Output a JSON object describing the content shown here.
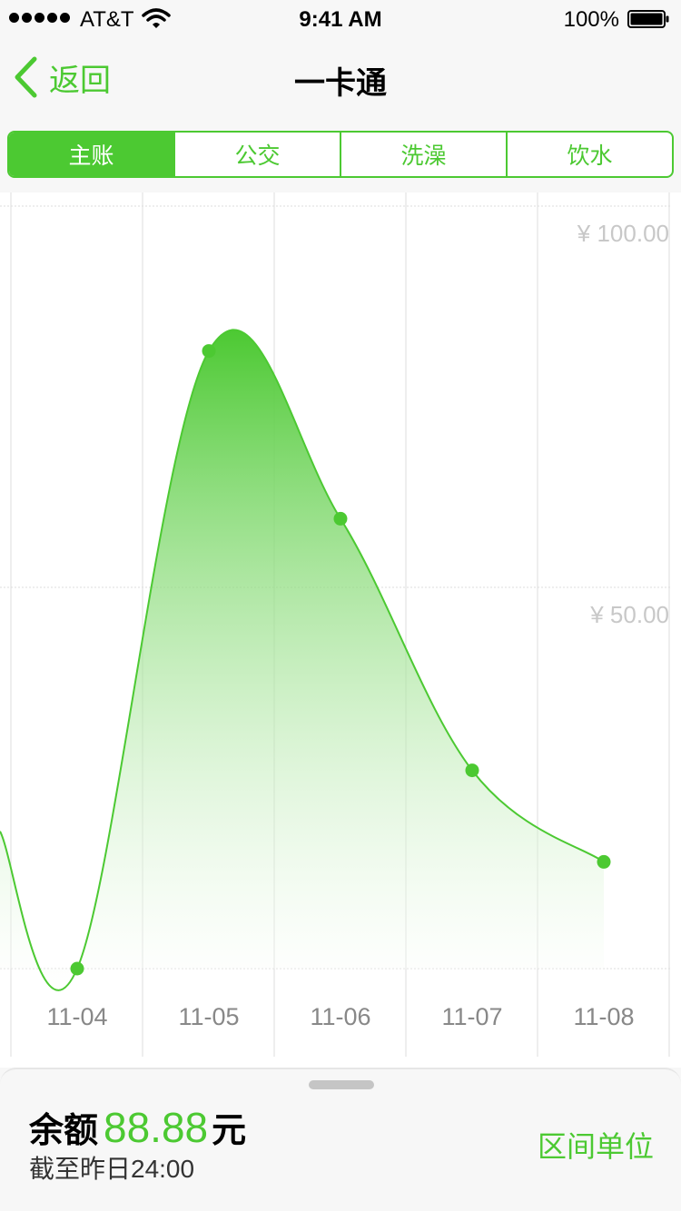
{
  "status_bar": {
    "carrier": "AT&T",
    "time": "9:41 AM",
    "battery": "100%"
  },
  "nav": {
    "back_label": "返回",
    "title": "一卡通"
  },
  "segments": [
    {
      "label": "主账",
      "active": true
    },
    {
      "label": "公交",
      "active": false
    },
    {
      "label": "洗澡",
      "active": false
    },
    {
      "label": "饮水",
      "active": false
    }
  ],
  "chart_data": {
    "type": "area",
    "categories": [
      "11-04",
      "11-05",
      "11-06",
      "11-07",
      "11-08"
    ],
    "values": [
      0,
      81,
      59,
      26,
      14
    ],
    "y_tick_labels": [
      "¥ 100.00",
      "¥ 50.00"
    ],
    "y_ticks": [
      100,
      50
    ],
    "ylim": [
      0,
      100
    ],
    "grid": true,
    "colors": {
      "line": "#4cc932",
      "fill_top": "#4cc932",
      "fill_bottom": "#ffffff",
      "grid": "#dddddd",
      "tick_label": "#c8c8c8",
      "x_label": "#888888"
    }
  },
  "footer": {
    "balance_label": "余额",
    "balance_value": "88.88",
    "balance_unit": "元",
    "as_of": "截至昨日24:00",
    "range_unit_label": "区间单位"
  },
  "colors": {
    "accent": "#4cc932"
  }
}
